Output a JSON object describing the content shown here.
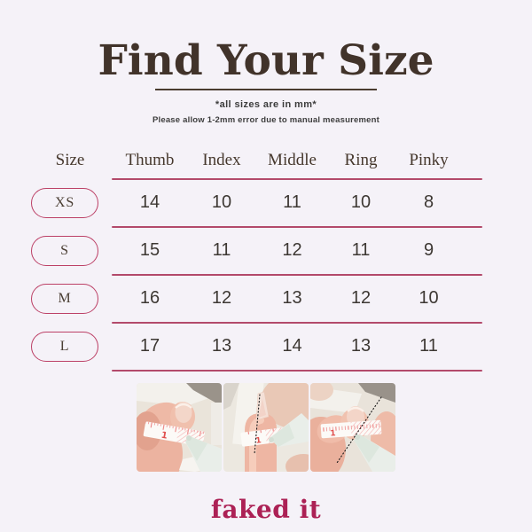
{
  "page": {
    "title": "Find Your Size",
    "subtitle": "*all sizes are in mm*",
    "note": "Please allow 1-2mm error due to manual measurement",
    "brand": "faked it"
  },
  "table": {
    "headers": [
      "Size",
      "Thumb",
      "Index",
      "Middle",
      "Ring",
      "Pinky"
    ],
    "rows": [
      {
        "size": "XS",
        "values": [
          "14",
          "10",
          "11",
          "10",
          "8"
        ]
      },
      {
        "size": "S",
        "values": [
          "15",
          "11",
          "12",
          "11",
          "9"
        ]
      },
      {
        "size": "M",
        "values": [
          "16",
          "12",
          "13",
          "12",
          "10"
        ]
      },
      {
        "size": "L",
        "values": [
          "17",
          "13",
          "14",
          "13",
          "11"
        ]
      }
    ]
  },
  "photos": [
    {
      "name": "measure-nail-tape-photo-1"
    },
    {
      "name": "measure-nail-dotted-line-photo-2"
    },
    {
      "name": "measure-nail-diagonal-line-photo-3"
    }
  ],
  "colors": {
    "background": "#f5f2f8",
    "title_brown": "#41332a",
    "accent_pink": "#b34a6b",
    "pill_border": "#bc4066",
    "brand_pink": "#ac2155"
  }
}
